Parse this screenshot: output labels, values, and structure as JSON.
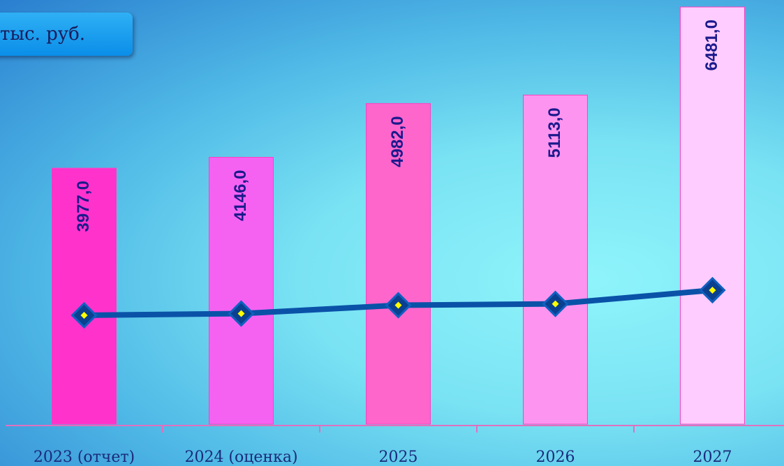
{
  "chart_data": {
    "type": "bar",
    "unit_label": "тыс. руб.",
    "categories": [
      "2023 (отчет)",
      "2024 (оценка)",
      "2025",
      "2026",
      "2027"
    ],
    "ylim": [
      0,
      6590
    ],
    "y2lim": [
      -6870,
      35400
    ],
    "series": [
      {
        "colors": [
          "#ff33cc",
          "#f562f2",
          "#ff66cc",
          "#fd94ef",
          "#ffccff"
        ],
        "values": [
          3977,
          4146,
          4982,
          5113,
          6481
        ],
        "value_labels": [
          "3977,0",
          "4146,0",
          "4982,0",
          "5113,0",
          "6481,0"
        ]
      },
      {
        "type": "line",
        "axis": "y2",
        "color": "#0a52a8",
        "values": [
          3977,
          4146,
          4982,
          5113,
          6481
        ]
      }
    ]
  }
}
